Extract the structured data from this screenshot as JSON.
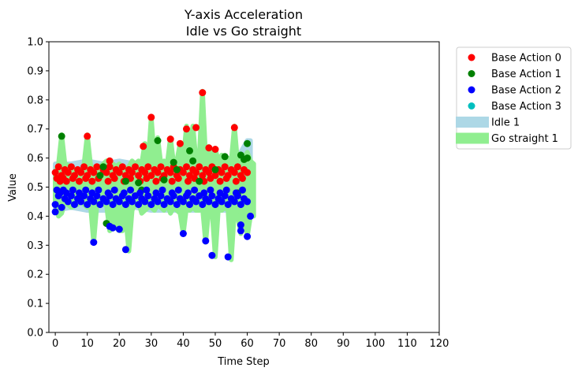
{
  "chart_data": {
    "type": "scatter",
    "title": "Y-axis Acceleration",
    "subtitle": "Idle vs Go straight",
    "xlabel": "Time Step",
    "ylabel": "Value",
    "xlim": [
      -2,
      120
    ],
    "ylim": [
      0,
      1.0
    ],
    "xticks": [
      "0",
      "10",
      "20",
      "30",
      "40",
      "50",
      "60",
      "70",
      "80",
      "90",
      "100",
      "110",
      "120"
    ],
    "yticks": [
      "0.0",
      "0.1",
      "0.2",
      "0.3",
      "0.4",
      "0.5",
      "0.6",
      "0.7",
      "0.8",
      "0.9",
      "1.0"
    ],
    "grid": false,
    "legend_position": "outside-right",
    "band_series": [
      {
        "name": "Idle 1",
        "color": "#add8e6",
        "x": [
          0,
          5,
          10,
          15,
          20,
          25,
          30,
          35,
          40,
          45,
          50,
          55,
          58,
          60,
          61
        ],
        "upper": [
          0.58,
          0.58,
          0.59,
          0.58,
          0.59,
          0.58,
          0.59,
          0.58,
          0.59,
          0.58,
          0.59,
          0.58,
          0.62,
          0.66,
          0.66
        ],
        "lower": [
          0.42,
          0.43,
          0.42,
          0.42,
          0.42,
          0.43,
          0.42,
          0.42,
          0.42,
          0.42,
          0.42,
          0.42,
          0.42,
          0.42,
          0.42
        ]
      },
      {
        "name": "Go straight 1",
        "color": "#90ee90",
        "x": [
          0,
          1,
          2,
          3,
          5,
          7,
          8,
          9,
          10,
          11,
          12,
          13,
          15,
          16,
          17,
          18,
          19,
          20,
          21,
          22,
          23,
          24,
          25,
          26,
          27,
          28,
          29,
          30,
          31,
          32,
          33,
          34,
          35,
          36,
          37,
          38,
          39,
          40,
          41,
          42,
          43,
          44,
          45,
          46,
          47,
          48,
          49,
          50,
          51,
          52,
          53,
          54,
          55,
          56,
          57,
          58,
          59,
          60,
          61,
          62
        ],
        "upper": [
          0.55,
          0.58,
          0.68,
          0.58,
          0.57,
          0.55,
          0.55,
          0.58,
          0.68,
          0.58,
          0.55,
          0.56,
          0.58,
          0.59,
          0.58,
          0.58,
          0.57,
          0.58,
          0.56,
          0.56,
          0.57,
          0.59,
          0.58,
          0.59,
          0.58,
          0.65,
          0.58,
          0.74,
          0.59,
          0.67,
          0.58,
          0.59,
          0.58,
          0.67,
          0.58,
          0.59,
          0.65,
          0.59,
          0.71,
          0.63,
          0.71,
          0.59,
          0.6,
          0.83,
          0.6,
          0.64,
          0.6,
          0.63,
          0.59,
          0.61,
          0.59,
          0.6,
          0.59,
          0.71,
          0.58,
          0.6,
          0.6,
          0.62,
          0.59,
          0.58
        ],
        "lower": [
          0.45,
          0.4,
          0.41,
          0.45,
          0.43,
          0.44,
          0.47,
          0.44,
          0.43,
          0.44,
          0.31,
          0.44,
          0.44,
          0.44,
          0.35,
          0.36,
          0.36,
          0.35,
          0.35,
          0.4,
          0.28,
          0.42,
          0.44,
          0.45,
          0.41,
          0.42,
          0.43,
          0.43,
          0.42,
          0.44,
          0.43,
          0.42,
          0.44,
          0.41,
          0.43,
          0.42,
          0.41,
          0.34,
          0.43,
          0.42,
          0.43,
          0.42,
          0.42,
          0.43,
          0.31,
          0.43,
          0.42,
          0.26,
          0.43,
          0.42,
          0.43,
          0.42,
          0.25,
          0.42,
          0.4,
          0.34,
          0.43,
          0.33,
          0.4,
          0.4
        ]
      }
    ],
    "series": [
      {
        "name": "Base Action 0",
        "color": "#ff0000",
        "x": [
          0,
          1,
          2,
          3,
          4,
          5,
          6,
          7,
          8,
          9,
          10,
          11,
          12,
          13,
          14,
          15,
          16,
          17,
          18,
          19,
          20,
          21,
          22,
          23,
          24,
          25,
          26,
          27,
          28,
          29,
          30,
          31,
          32,
          33,
          34,
          35,
          36,
          37,
          38,
          39,
          40,
          41,
          42,
          43,
          44,
          45,
          46,
          47,
          48,
          49,
          50,
          51,
          52,
          53,
          54,
          55,
          56,
          57,
          58,
          59,
          60,
          0.5,
          1.5,
          2.5,
          3.5,
          5.5,
          7.5,
          9.5,
          11.5,
          13.5,
          16.5,
          18.5,
          21.5,
          23.5,
          26.5,
          28.5,
          31.5,
          33.5,
          36.5,
          38.5,
          41.5,
          43.5,
          46.5,
          48.5,
          51.5,
          53.5,
          56.5,
          58.5,
          10,
          17,
          27.5,
          30,
          36,
          39,
          41,
          44,
          46,
          48,
          50,
          56
        ],
        "y": [
          0.55,
          0.57,
          0.54,
          0.56,
          0.55,
          0.57,
          0.54,
          0.56,
          0.55,
          0.57,
          0.54,
          0.56,
          0.55,
          0.57,
          0.54,
          0.56,
          0.55,
          0.57,
          0.54,
          0.56,
          0.55,
          0.57,
          0.54,
          0.56,
          0.55,
          0.57,
          0.54,
          0.56,
          0.55,
          0.57,
          0.54,
          0.56,
          0.55,
          0.57,
          0.54,
          0.56,
          0.55,
          0.57,
          0.54,
          0.56,
          0.55,
          0.57,
          0.54,
          0.56,
          0.55,
          0.57,
          0.54,
          0.56,
          0.55,
          0.57,
          0.54,
          0.56,
          0.55,
          0.57,
          0.54,
          0.56,
          0.55,
          0.57,
          0.54,
          0.56,
          0.55,
          0.53,
          0.52,
          0.53,
          0.52,
          0.53,
          0.52,
          0.53,
          0.52,
          0.53,
          0.52,
          0.53,
          0.52,
          0.53,
          0.52,
          0.53,
          0.52,
          0.53,
          0.52,
          0.53,
          0.52,
          0.53,
          0.52,
          0.53,
          0.52,
          0.53,
          0.52,
          0.53,
          0.675,
          0.59,
          0.64,
          0.74,
          0.665,
          0.65,
          0.7,
          0.705,
          0.825,
          0.635,
          0.63,
          0.705
        ]
      },
      {
        "name": "Base Action 1",
        "color": "#008000",
        "x": [
          2,
          8,
          15,
          16,
          26,
          32,
          34,
          37,
          42,
          43,
          45,
          50,
          53,
          57,
          58,
          59,
          60,
          60,
          27,
          14,
          22,
          38
        ],
        "y": [
          0.675,
          0.47,
          0.57,
          0.375,
          0.515,
          0.66,
          0.525,
          0.585,
          0.625,
          0.59,
          0.52,
          0.56,
          0.605,
          0.48,
          0.61,
          0.595,
          0.6,
          0.65,
          0.49,
          0.54,
          0.52,
          0.56
        ]
      },
      {
        "name": "Base Action 2",
        "color": "#0000ff",
        "x": [
          0,
          1,
          2,
          3,
          4,
          5,
          6,
          7,
          8,
          9,
          10,
          11,
          12,
          13,
          14,
          15,
          16,
          17,
          18,
          19,
          20,
          21,
          22,
          23,
          24,
          25,
          26,
          27,
          28,
          29,
          30,
          31,
          32,
          33,
          34,
          35,
          36,
          37,
          38,
          39,
          40,
          41,
          42,
          43,
          44,
          45,
          46,
          47,
          48,
          49,
          50,
          51,
          52,
          53,
          54,
          55,
          56,
          57,
          58,
          59,
          60,
          0.5,
          1.5,
          2.5,
          3.5,
          5.5,
          7.5,
          9.5,
          11.5,
          13.5,
          16.5,
          18.5,
          21.5,
          23.5,
          26.5,
          28.5,
          31.5,
          33.5,
          36.5,
          38.5,
          41.5,
          43.5,
          46.5,
          48.5,
          51.5,
          53.5,
          56.5,
          58.5,
          0,
          12,
          17,
          18,
          20,
          22,
          40,
          47,
          49,
          54,
          58,
          58,
          60,
          61
        ],
        "y": [
          0.44,
          0.47,
          0.43,
          0.46,
          0.45,
          0.47,
          0.44,
          0.46,
          0.45,
          0.47,
          0.44,
          0.46,
          0.45,
          0.47,
          0.44,
          0.46,
          0.45,
          0.47,
          0.44,
          0.46,
          0.45,
          0.47,
          0.44,
          0.46,
          0.45,
          0.47,
          0.44,
          0.46,
          0.45,
          0.47,
          0.44,
          0.46,
          0.45,
          0.47,
          0.44,
          0.46,
          0.45,
          0.47,
          0.44,
          0.46,
          0.45,
          0.47,
          0.44,
          0.46,
          0.45,
          0.47,
          0.44,
          0.46,
          0.45,
          0.47,
          0.44,
          0.46,
          0.45,
          0.47,
          0.44,
          0.46,
          0.45,
          0.47,
          0.44,
          0.46,
          0.45,
          0.49,
          0.48,
          0.49,
          0.48,
          0.49,
          0.48,
          0.49,
          0.48,
          0.49,
          0.48,
          0.49,
          0.48,
          0.49,
          0.48,
          0.49,
          0.48,
          0.49,
          0.48,
          0.49,
          0.48,
          0.49,
          0.48,
          0.49,
          0.48,
          0.49,
          0.48,
          0.49,
          0.415,
          0.31,
          0.365,
          0.36,
          0.355,
          0.285,
          0.34,
          0.315,
          0.265,
          0.26,
          0.37,
          0.35,
          0.33,
          0.4
        ]
      },
      {
        "name": "Base Action 3",
        "color": "#00bfbf",
        "x": [],
        "y": []
      }
    ]
  }
}
